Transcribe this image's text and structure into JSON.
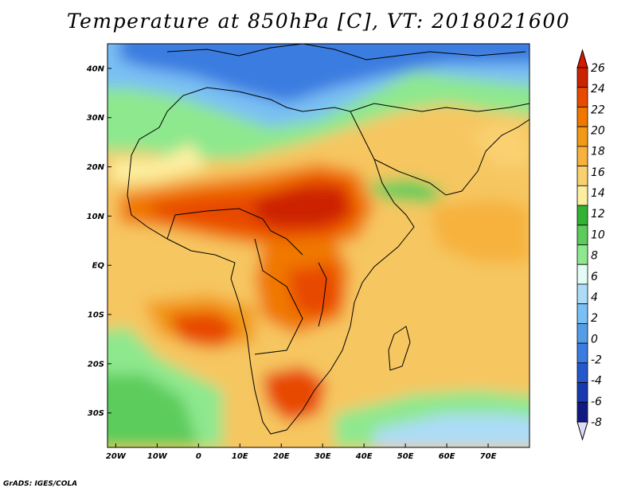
{
  "title": "Temperature at 850hPa [C], VT: 2018021600",
  "footer": "GrADS: IGES/COLA",
  "map": {
    "lon_range": [
      -22,
      80
    ],
    "lat_range": [
      -37,
      45
    ],
    "lat_ticks": [
      {
        "value": 40,
        "label": "40N"
      },
      {
        "value": 30,
        "label": "30N"
      },
      {
        "value": 20,
        "label": "20N"
      },
      {
        "value": 10,
        "label": "10N"
      },
      {
        "value": 0,
        "label": "EQ"
      },
      {
        "value": -10,
        "label": "10S"
      },
      {
        "value": -20,
        "label": "20S"
      },
      {
        "value": -30,
        "label": "30S"
      }
    ],
    "lon_ticks": [
      {
        "value": -20,
        "label": "20W"
      },
      {
        "value": -10,
        "label": "10W"
      },
      {
        "value": 0,
        "label": "0"
      },
      {
        "value": 10,
        "label": "10E"
      },
      {
        "value": 20,
        "label": "20E"
      },
      {
        "value": 30,
        "label": "30E"
      },
      {
        "value": 40,
        "label": "40E"
      },
      {
        "value": 50,
        "label": "50E"
      },
      {
        "value": 60,
        "label": "60E"
      },
      {
        "value": 70,
        "label": "70E"
      }
    ]
  },
  "colorbar": {
    "levels": [
      "26",
      "24",
      "22",
      "20",
      "18",
      "16",
      "14",
      "12",
      "10",
      "8",
      "6",
      "4",
      "2",
      "0",
      "-2",
      "-4",
      "-6",
      "-8"
    ],
    "colors": [
      "#cc2200",
      "#e84a00",
      "#f07800",
      "#f29a18",
      "#f6b23c",
      "#fad070",
      "#fcefa0",
      "#34b234",
      "#5ccc5c",
      "#8ee88e",
      "#e4fcf6",
      "#acdcf8",
      "#7ac0f4",
      "#549ee8",
      "#3a7ce0",
      "#2458cc",
      "#183ab0",
      "#101a80"
    ],
    "top_arrow_color": "#d81800",
    "bottom_arrow_color": "#ddddf8"
  }
}
